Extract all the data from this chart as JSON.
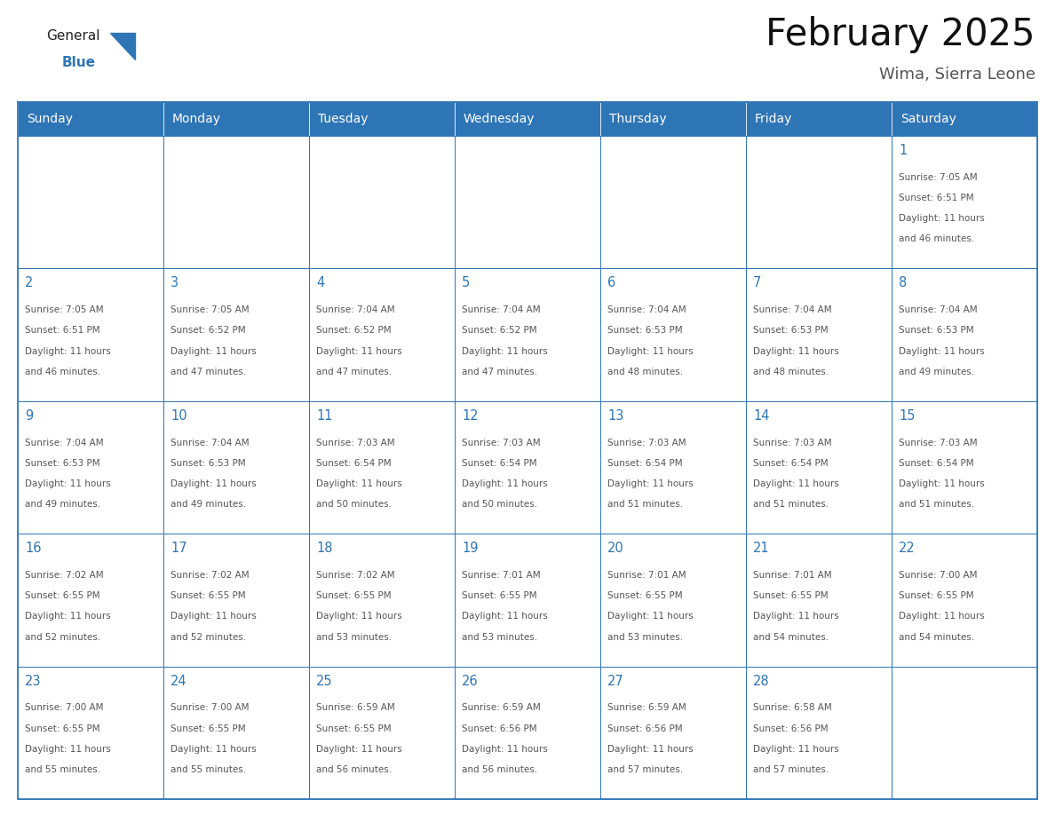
{
  "title": "February 2025",
  "subtitle": "Wima, Sierra Leone",
  "header_bg_color": "#2E75B6",
  "header_text_color": "#FFFFFF",
  "header_days": [
    "Sunday",
    "Monday",
    "Tuesday",
    "Wednesday",
    "Thursday",
    "Friday",
    "Saturday"
  ],
  "background_color": "#FFFFFF",
  "cell_border_color": "#2E75B6",
  "day_number_color": "#2E75B6",
  "cell_text_color": "#555555",
  "title_color": "#111111",
  "subtitle_color": "#555555",
  "logo_general_color": "#222222",
  "logo_blue_color": "#2E75B6",
  "calendar_data": [
    [
      null,
      null,
      null,
      null,
      null,
      null,
      1
    ],
    [
      2,
      3,
      4,
      5,
      6,
      7,
      8
    ],
    [
      9,
      10,
      11,
      12,
      13,
      14,
      15
    ],
    [
      16,
      17,
      18,
      19,
      20,
      21,
      22
    ],
    [
      23,
      24,
      25,
      26,
      27,
      28,
      null
    ]
  ],
  "sunrise_data": {
    "1": "7:05 AM",
    "2": "7:05 AM",
    "3": "7:05 AM",
    "4": "7:04 AM",
    "5": "7:04 AM",
    "6": "7:04 AM",
    "7": "7:04 AM",
    "8": "7:04 AM",
    "9": "7:04 AM",
    "10": "7:04 AM",
    "11": "7:03 AM",
    "12": "7:03 AM",
    "13": "7:03 AM",
    "14": "7:03 AM",
    "15": "7:03 AM",
    "16": "7:02 AM",
    "17": "7:02 AM",
    "18": "7:02 AM",
    "19": "7:01 AM",
    "20": "7:01 AM",
    "21": "7:01 AM",
    "22": "7:00 AM",
    "23": "7:00 AM",
    "24": "7:00 AM",
    "25": "6:59 AM",
    "26": "6:59 AM",
    "27": "6:59 AM",
    "28": "6:58 AM"
  },
  "sunset_data": {
    "1": "6:51 PM",
    "2": "6:51 PM",
    "3": "6:52 PM",
    "4": "6:52 PM",
    "5": "6:52 PM",
    "6": "6:53 PM",
    "7": "6:53 PM",
    "8": "6:53 PM",
    "9": "6:53 PM",
    "10": "6:53 PM",
    "11": "6:54 PM",
    "12": "6:54 PM",
    "13": "6:54 PM",
    "14": "6:54 PM",
    "15": "6:54 PM",
    "16": "6:55 PM",
    "17": "6:55 PM",
    "18": "6:55 PM",
    "19": "6:55 PM",
    "20": "6:55 PM",
    "21": "6:55 PM",
    "22": "6:55 PM",
    "23": "6:55 PM",
    "24": "6:55 PM",
    "25": "6:55 PM",
    "26": "6:56 PM",
    "27": "6:56 PM",
    "28": "6:56 PM"
  },
  "daylight_data": {
    "1": [
      "11 hours",
      "and 46 minutes."
    ],
    "2": [
      "11 hours",
      "and 46 minutes."
    ],
    "3": [
      "11 hours",
      "and 47 minutes."
    ],
    "4": [
      "11 hours",
      "and 47 minutes."
    ],
    "5": [
      "11 hours",
      "and 47 minutes."
    ],
    "6": [
      "11 hours",
      "and 48 minutes."
    ],
    "7": [
      "11 hours",
      "and 48 minutes."
    ],
    "8": [
      "11 hours",
      "and 49 minutes."
    ],
    "9": [
      "11 hours",
      "and 49 minutes."
    ],
    "10": [
      "11 hours",
      "and 49 minutes."
    ],
    "11": [
      "11 hours",
      "and 50 minutes."
    ],
    "12": [
      "11 hours",
      "and 50 minutes."
    ],
    "13": [
      "11 hours",
      "and 51 minutes."
    ],
    "14": [
      "11 hours",
      "and 51 minutes."
    ],
    "15": [
      "11 hours",
      "and 51 minutes."
    ],
    "16": [
      "11 hours",
      "and 52 minutes."
    ],
    "17": [
      "11 hours",
      "and 52 minutes."
    ],
    "18": [
      "11 hours",
      "and 53 minutes."
    ],
    "19": [
      "11 hours",
      "and 53 minutes."
    ],
    "20": [
      "11 hours",
      "and 53 minutes."
    ],
    "21": [
      "11 hours",
      "and 54 minutes."
    ],
    "22": [
      "11 hours",
      "and 54 minutes."
    ],
    "23": [
      "11 hours",
      "and 55 minutes."
    ],
    "24": [
      "11 hours",
      "and 55 minutes."
    ],
    "25": [
      "11 hours",
      "and 56 minutes."
    ],
    "26": [
      "11 hours",
      "and 56 minutes."
    ],
    "27": [
      "11 hours",
      "and 57 minutes."
    ],
    "28": [
      "11 hours",
      "and 57 minutes."
    ]
  },
  "fig_width": 11.88,
  "fig_height": 9.18,
  "dpi": 100
}
